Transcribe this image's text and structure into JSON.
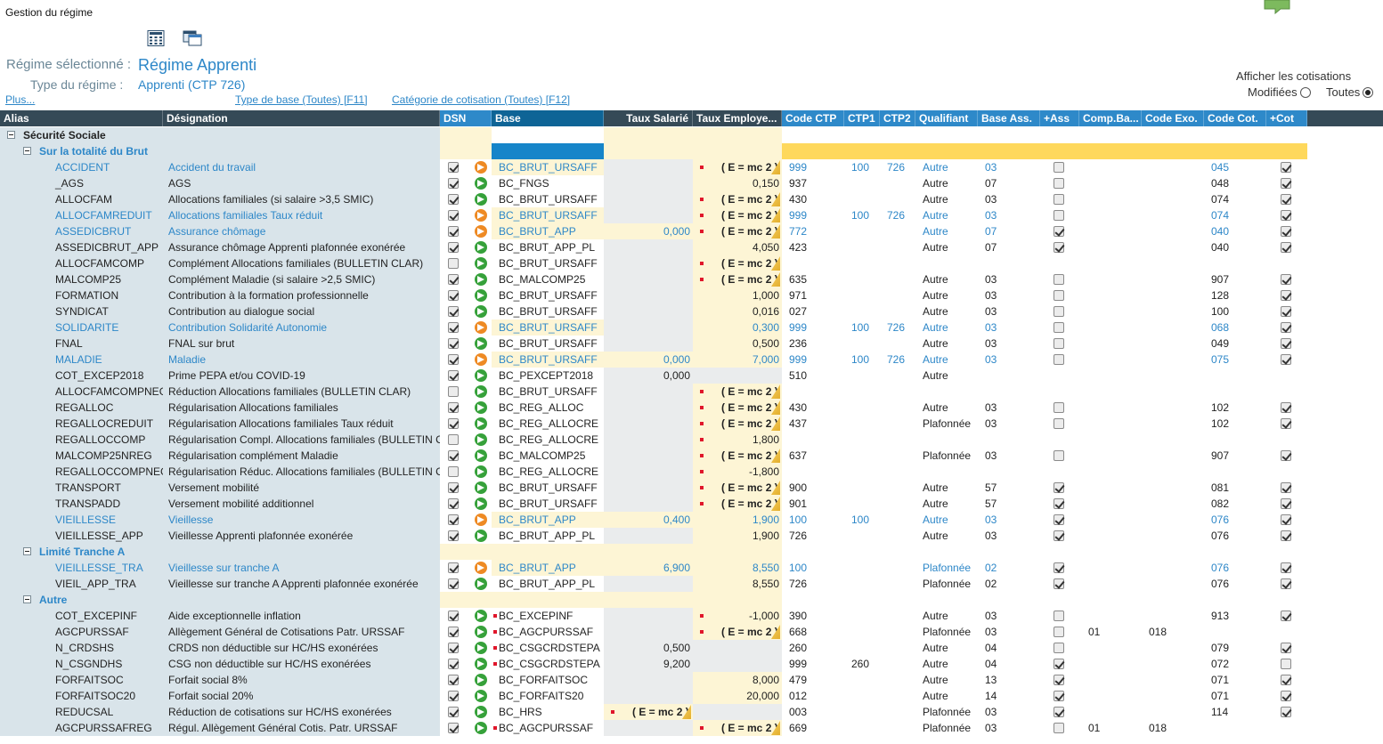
{
  "app": {
    "title": "Gestion du régime"
  },
  "toolbar": {
    "icons": [
      "calculator-icon",
      "copy-window-icon"
    ]
  },
  "regime": {
    "selected_label": "Régime sélectionné :",
    "selected_value": "Régime Apprenti",
    "type_label": "Type du régime :",
    "type_value": "Apprenti (CTP 726)"
  },
  "links": {
    "plus": "Plus...",
    "type_base": "Type de base (Toutes) [F11]",
    "categorie": "Catégorie de cotisation (Toutes) [F12]"
  },
  "afficher": {
    "title": "Afficher les cotisations",
    "opt_modified": "Modifiées",
    "opt_all": "Toutes",
    "selected": "Toutes"
  },
  "colors": {
    "header_bg": "#354a57",
    "header_blue": "#2e89c9",
    "base_header": "#0e6496",
    "tree_bg": "#d9e4ea",
    "cell_gray": "#eaeced",
    "cell_yellow": "#fdf5d5",
    "group_band": "#fed85c",
    "link_blue": "#2d87c8",
    "base_cell_blue": "#1685c9"
  },
  "columns": [
    "Alias",
    "Désignation",
    "DSN",
    "Base",
    "Taux Salarié",
    "Taux Employe...",
    "Code CTP",
    "CTP1",
    "CTP2",
    "Qualifiant",
    "Base Ass.",
    "+Ass",
    "Comp.Ba...",
    "Code Exo.",
    "Code Cot.",
    "+Cot"
  ],
  "formula": "( E = mc 2 )",
  "rows": [
    {
      "kind": "group",
      "level": 0,
      "label": "Sécurité Sociale"
    },
    {
      "kind": "group",
      "level": 1,
      "label": "Sur la totalité du Brut"
    },
    {
      "alias": "ACCIDENT",
      "des": "Accident du travail",
      "dsn": true,
      "arrow": "o",
      "base": "BC_BRUT_URSAFF",
      "ts": "",
      "te": "F",
      "ctp": "999",
      "ctp1": "100",
      "ctp2": "726",
      "qual": "Autre",
      "bass": "03",
      "ass": "n",
      "comp": "",
      "exo": "",
      "cot": "045",
      "pcot": "y",
      "mod": true
    },
    {
      "alias": "_AGS",
      "des": "AGS",
      "dsn": true,
      "arrow": "g",
      "base": "BC_FNGS",
      "ts": "",
      "te": "0,150",
      "ctp": "937",
      "ctp1": "",
      "ctp2": "",
      "qual": "Autre",
      "bass": "07",
      "ass": "n",
      "comp": "",
      "exo": "",
      "cot": "048",
      "pcot": "y"
    },
    {
      "alias": "ALLOCFAM",
      "des": "Allocations familiales (si salaire >3,5 SMIC)",
      "dsn": true,
      "arrow": "g",
      "base": "BC_BRUT_URSAFF",
      "ts": "",
      "te": "F",
      "ctp": "430",
      "ctp1": "",
      "ctp2": "",
      "qual": "Autre",
      "bass": "03",
      "ass": "n",
      "comp": "",
      "exo": "",
      "cot": "074",
      "pcot": "y"
    },
    {
      "alias": "ALLOCFAMREDUIT",
      "des": "Allocations familiales Taux réduit",
      "dsn": true,
      "arrow": "o",
      "base": "BC_BRUT_URSAFF",
      "ts": "",
      "te": "F",
      "ctp": "999",
      "ctp1": "100",
      "ctp2": "726",
      "qual": "Autre",
      "bass": "03",
      "ass": "n",
      "comp": "",
      "exo": "",
      "cot": "074",
      "pcot": "y",
      "mod": true
    },
    {
      "alias": "ASSEDICBRUT",
      "des": "Assurance chômage",
      "dsn": true,
      "arrow": "o",
      "base": "BC_BRUT_APP",
      "ts": "0,000",
      "te": "F",
      "ctp": "772",
      "ctp1": "",
      "ctp2": "",
      "qual": "Autre",
      "bass": "07",
      "ass": "y",
      "comp": "",
      "exo": "",
      "cot": "040",
      "pcot": "y",
      "mod": true
    },
    {
      "alias": "ASSEDICBRUT_APP",
      "des": "Assurance chômage Apprenti plafonnée exonérée",
      "dsn": true,
      "arrow": "g",
      "base": "BC_BRUT_APP_PL",
      "ts": "",
      "te": "4,050",
      "ctp": "423",
      "ctp1": "",
      "ctp2": "",
      "qual": "Autre",
      "bass": "07",
      "ass": "y",
      "comp": "",
      "exo": "",
      "cot": "040",
      "pcot": "y"
    },
    {
      "alias": "ALLOCFAMCOMP",
      "des": "Complément Allocations familiales (BULLETIN CLAR)",
      "dsn": false,
      "arrow": "g",
      "base": "BC_BRUT_URSAFF",
      "ts": "",
      "te": "F",
      "ctp": "",
      "ctp1": "",
      "ctp2": "",
      "qual": "",
      "bass": "",
      "ass": "",
      "comp": "",
      "exo": "",
      "cot": "",
      "pcot": ""
    },
    {
      "alias": "MALCOMP25",
      "des": "Complément Maladie (si salaire >2,5 SMIC)",
      "dsn": true,
      "arrow": "g",
      "base": "BC_MALCOMP25",
      "ts": "",
      "te": "F",
      "ctp": "635",
      "ctp1": "",
      "ctp2": "",
      "qual": "Autre",
      "bass": "03",
      "ass": "n",
      "comp": "",
      "exo": "",
      "cot": "907",
      "pcot": "y"
    },
    {
      "alias": "FORMATION",
      "des": "Contribution à la formation professionnelle",
      "dsn": true,
      "arrow": "g",
      "base": "BC_BRUT_URSAFF",
      "ts": "",
      "te": "1,000",
      "ctp": "971",
      "ctp1": "",
      "ctp2": "",
      "qual": "Autre",
      "bass": "03",
      "ass": "n",
      "comp": "",
      "exo": "",
      "cot": "128",
      "pcot": "y"
    },
    {
      "alias": "SYNDICAT",
      "des": "Contribution au dialogue social",
      "dsn": true,
      "arrow": "g",
      "base": "BC_BRUT_URSAFF",
      "ts": "",
      "te": "0,016",
      "ctp": "027",
      "ctp1": "",
      "ctp2": "",
      "qual": "Autre",
      "bass": "03",
      "ass": "n",
      "comp": "",
      "exo": "",
      "cot": "100",
      "pcot": "y"
    },
    {
      "alias": "SOLIDARITE",
      "des": "Contribution Solidarité Autonomie",
      "dsn": true,
      "arrow": "o",
      "base": "BC_BRUT_URSAFF",
      "ts": "",
      "te": "0,300",
      "ctp": "999",
      "ctp1": "100",
      "ctp2": "726",
      "qual": "Autre",
      "bass": "03",
      "ass": "n",
      "comp": "",
      "exo": "",
      "cot": "068",
      "pcot": "y",
      "mod": true
    },
    {
      "alias": "FNAL",
      "des": "FNAL sur brut",
      "dsn": true,
      "arrow": "g",
      "base": "BC_BRUT_URSAFF",
      "ts": "",
      "te": "0,500",
      "ctp": "236",
      "ctp1": "",
      "ctp2": "",
      "qual": "Autre",
      "bass": "03",
      "ass": "n",
      "comp": "",
      "exo": "",
      "cot": "049",
      "pcot": "y"
    },
    {
      "alias": "MALADIE",
      "des": "Maladie",
      "dsn": true,
      "arrow": "o",
      "base": "BC_BRUT_URSAFF",
      "ts": "0,000",
      "te": "7,000",
      "ctp": "999",
      "ctp1": "100",
      "ctp2": "726",
      "qual": "Autre",
      "bass": "03",
      "ass": "n",
      "comp": "",
      "exo": "",
      "cot": "075",
      "pcot": "y",
      "mod": true
    },
    {
      "alias": "COT_EXCEP2018",
      "des": "Prime PEPA et/ou COVID-19",
      "dsn": true,
      "arrow": "g",
      "base": "BC_PEXCEPT2018",
      "ts": "0,000",
      "te": "",
      "ctp": "510",
      "ctp1": "",
      "ctp2": "",
      "qual": "Autre",
      "bass": "",
      "ass": "",
      "comp": "",
      "exo": "",
      "cot": "",
      "pcot": "",
      "tsGray": true
    },
    {
      "alias": "ALLOCFAMCOMPNEG",
      "des": "Réduction Allocations familiales (BULLETIN CLAR)",
      "dsn": false,
      "arrow": "g",
      "base": "BC_BRUT_URSAFF",
      "ts": "",
      "te": "F",
      "ctp": "",
      "ctp1": "",
      "ctp2": "",
      "qual": "",
      "bass": "",
      "ass": "",
      "comp": "",
      "exo": "",
      "cot": "",
      "pcot": ""
    },
    {
      "alias": "REGALLOC",
      "des": "Régularisation Allocations familiales",
      "dsn": true,
      "arrow": "g",
      "base": "BC_REG_ALLOC",
      "ts": "",
      "te": "F",
      "ctp": "430",
      "ctp1": "",
      "ctp2": "",
      "qual": "Autre",
      "bass": "03",
      "ass": "n",
      "comp": "",
      "exo": "",
      "cot": "102",
      "pcot": "y"
    },
    {
      "alias": "REGALLOCREDUIT",
      "des": "Régularisation Allocations familiales Taux réduit",
      "dsn": true,
      "arrow": "g",
      "base": "BC_REG_ALLOCRE",
      "ts": "",
      "te": "F",
      "ctp": "437",
      "ctp1": "",
      "ctp2": "",
      "qual": "Plafonnée",
      "bass": "03",
      "ass": "n",
      "comp": "",
      "exo": "",
      "cot": "102",
      "pcot": "y"
    },
    {
      "alias": "REGALLOCCOMP",
      "des": "Régularisation Compl. Allocations familiales (BULLETIN CLAR)",
      "dsn": false,
      "arrow": "g",
      "base": "BC_REG_ALLOCRE",
      "ts": "",
      "te": "1,800",
      "teMark": true,
      "ctp": "",
      "ctp1": "",
      "ctp2": "",
      "qual": "",
      "bass": "",
      "ass": "",
      "comp": "",
      "exo": "",
      "cot": "",
      "pcot": ""
    },
    {
      "alias": "MALCOMP25NREG",
      "des": "Régularisation complément Maladie",
      "dsn": true,
      "arrow": "g",
      "base": "BC_MALCOMP25",
      "ts": "",
      "te": "F",
      "ctp": "637",
      "ctp1": "",
      "ctp2": "",
      "qual": "Plafonnée",
      "bass": "03",
      "ass": "n",
      "comp": "",
      "exo": "",
      "cot": "907",
      "pcot": "y"
    },
    {
      "alias": "REGALLOCCOMPNEG",
      "des": "Régularisation Réduc. Allocations familiales (BULLETIN CLAR)",
      "dsn": false,
      "arrow": "g",
      "base": "BC_REG_ALLOCRE",
      "ts": "",
      "te": "-1,800",
      "teMark": true,
      "ctp": "",
      "ctp1": "",
      "ctp2": "",
      "qual": "",
      "bass": "",
      "ass": "",
      "comp": "",
      "exo": "",
      "cot": "",
      "pcot": ""
    },
    {
      "alias": "TRANSPORT",
      "des": "Versement mobilité",
      "dsn": true,
      "arrow": "g",
      "base": "BC_BRUT_URSAFF",
      "ts": "",
      "te": "F",
      "ctp": "900",
      "ctp1": "",
      "ctp2": "",
      "qual": "Autre",
      "bass": "57",
      "ass": "y",
      "comp": "",
      "exo": "",
      "cot": "081",
      "pcot": "y"
    },
    {
      "alias": "TRANSPADD",
      "des": "Versement mobilité additionnel",
      "dsn": true,
      "arrow": "g",
      "base": "BC_BRUT_URSAFF",
      "ts": "",
      "te": "F",
      "ctp": "901",
      "ctp1": "",
      "ctp2": "",
      "qual": "Autre",
      "bass": "57",
      "ass": "y",
      "comp": "",
      "exo": "",
      "cot": "082",
      "pcot": "y"
    },
    {
      "alias": "VIEILLESSE",
      "des": "Vieillesse",
      "dsn": true,
      "arrow": "o",
      "base": "BC_BRUT_APP",
      "ts": "0,400",
      "te": "1,900",
      "ctp": "100",
      "ctp1": "100",
      "ctp2": "",
      "qual": "Autre",
      "bass": "03",
      "ass": "y",
      "comp": "",
      "exo": "",
      "cot": "076",
      "pcot": "y",
      "mod": true
    },
    {
      "alias": "VIEILLESSE_APP",
      "des": "Vieillesse Apprenti plafonnée exonérée",
      "dsn": true,
      "arrow": "g",
      "base": "BC_BRUT_APP_PL",
      "ts": "",
      "te": "1,900",
      "ctp": "726",
      "ctp1": "",
      "ctp2": "",
      "qual": "Autre",
      "bass": "03",
      "ass": "y",
      "comp": "",
      "exo": "",
      "cot": "076",
      "pcot": "y"
    },
    {
      "kind": "group",
      "level": 1,
      "label": "Limité Tranche A"
    },
    {
      "alias": "VIEILLESSE_TRA",
      "des": "Vieillesse sur tranche A",
      "dsn": true,
      "arrow": "o",
      "base": "BC_BRUT_APP",
      "ts": "6,900",
      "te": "8,550",
      "ctp": "100",
      "ctp1": "",
      "ctp2": "",
      "qual": "Plafonnée",
      "bass": "02",
      "ass": "y",
      "comp": "",
      "exo": "",
      "cot": "076",
      "pcot": "y",
      "mod": true
    },
    {
      "alias": "VIEIL_APP_TRA",
      "des": "Vieillesse sur tranche A Apprenti plafonnée exonérée",
      "dsn": true,
      "arrow": "g",
      "base": "BC_BRUT_APP_PL",
      "ts": "",
      "te": "8,550",
      "ctp": "726",
      "ctp1": "",
      "ctp2": "",
      "qual": "Plafonnée",
      "bass": "02",
      "ass": "y",
      "comp": "",
      "exo": "",
      "cot": "076",
      "pcot": "y"
    },
    {
      "kind": "group",
      "level": 1,
      "label": "Autre"
    },
    {
      "alias": "COT_EXCEPINF",
      "des": "Aide exceptionnelle inflation",
      "dsn": true,
      "arrow": "g",
      "base": "BC_EXCEPINF",
      "baseMark": true,
      "ts": "",
      "te": "-1,000",
      "teMark": true,
      "ctp": "390",
      "ctp1": "",
      "ctp2": "",
      "qual": "Autre",
      "bass": "03",
      "ass": "n",
      "comp": "",
      "exo": "",
      "cot": "913",
      "pcot": "y"
    },
    {
      "alias": "AGCPURSSAF",
      "des": "Allègement Général de Cotisations Patr. URSSAF",
      "dsn": true,
      "arrow": "g",
      "base": "BC_AGCPURSSAF",
      "baseMark": true,
      "ts": "",
      "te": "F",
      "ctp": "668",
      "ctp1": "",
      "ctp2": "",
      "qual": "Plafonnée",
      "bass": "03",
      "ass": "n",
      "comp": "01",
      "exo": "018",
      "cot": "",
      "pcot": ""
    },
    {
      "alias": "N_CRDSHS",
      "des": "CRDS non déductible sur HC/HS exonérées",
      "dsn": true,
      "arrow": "g",
      "base": "BC_CSGCRDSTEPA",
      "baseMark": true,
      "ts": "0,500",
      "te": "",
      "ctp": "260",
      "ctp1": "",
      "ctp2": "",
      "qual": "Autre",
      "bass": "04",
      "ass": "n",
      "comp": "",
      "exo": "",
      "cot": "079",
      "pcot": "y",
      "tsGray": true
    },
    {
      "alias": "N_CSGNDHS",
      "des": "CSG non déductible sur HC/HS exonérées",
      "dsn": true,
      "arrow": "g",
      "base": "BC_CSGCRDSTEPA",
      "baseMark": true,
      "ts": "9,200",
      "te": "",
      "ctp": "999",
      "ctp1": "260",
      "ctp2": "",
      "qual": "Autre",
      "bass": "04",
      "ass": "y",
      "comp": "",
      "exo": "",
      "cot": "072",
      "pcot": "n",
      "tsGray": true
    },
    {
      "alias": "FORFAITSOC",
      "des": "Forfait social  8%",
      "dsn": true,
      "arrow": "g",
      "base": "BC_FORFAITSOC",
      "ts": "",
      "te": "8,000",
      "ctp": "479",
      "ctp1": "",
      "ctp2": "",
      "qual": "Autre",
      "bass": "13",
      "ass": "y",
      "comp": "",
      "exo": "",
      "cot": "071",
      "pcot": "y"
    },
    {
      "alias": "FORFAITSOC20",
      "des": "Forfait social 20%",
      "dsn": true,
      "arrow": "g",
      "base": "BC_FORFAITS20",
      "ts": "",
      "te": "20,000",
      "ctp": "012",
      "ctp1": "",
      "ctp2": "",
      "qual": "Autre",
      "bass": "14",
      "ass": "y",
      "comp": "",
      "exo": "",
      "cot": "071",
      "pcot": "y"
    },
    {
      "alias": "REDUCSAL",
      "des": "Réduction de cotisations sur HC/HS exonérées",
      "dsn": true,
      "arrow": "g",
      "base": "BC_HRS",
      "ts": "F",
      "te": "",
      "ctp": "003",
      "ctp1": "",
      "ctp2": "",
      "qual": "Plafonnée",
      "bass": "03",
      "ass": "y",
      "comp": "",
      "exo": "",
      "cot": "114",
      "pcot": "y",
      "teGray": true
    },
    {
      "alias": "AGCPURSSAFREG",
      "des": "Régul. Allègement Général Cotis. Patr. URSSAF",
      "dsn": true,
      "arrow": "g",
      "base": "BC_AGCPURSSAF",
      "baseMark": true,
      "ts": "",
      "te": "F",
      "ctp": "669",
      "ctp1": "",
      "ctp2": "",
      "qual": "Plafonnée",
      "bass": "03",
      "ass": "n",
      "comp": "01",
      "exo": "018",
      "cot": "",
      "pcot": ""
    }
  ]
}
